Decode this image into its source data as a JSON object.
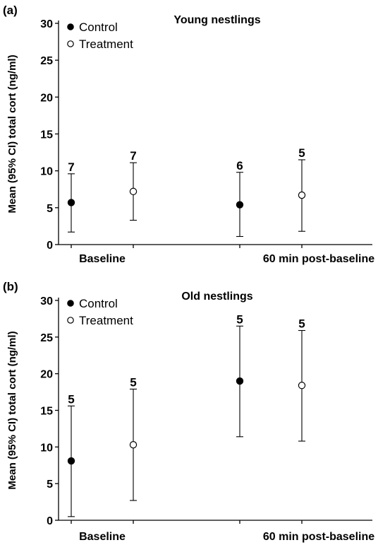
{
  "chart_data": [
    {
      "type": "scatter",
      "panel_label": "(a)",
      "title": "Young nestlings",
      "ylabel": "Mean (95% CI) total cort (ng/ml)",
      "xlabel": "",
      "ylim": [
        0,
        30
      ],
      "yticks": [
        0,
        5,
        10,
        15,
        20,
        25,
        30
      ],
      "groups": [
        "Baseline",
        "60 min post-baseline"
      ],
      "legend": {
        "position": "top-left",
        "entries": [
          "Control",
          "Treatment"
        ]
      },
      "grid": false,
      "series": [
        {
          "name": "Control",
          "marker": "filled-circle",
          "points": [
            {
              "group": "Baseline",
              "mean": 5.7,
              "ci_low": 1.7,
              "ci_high": 9.6,
              "n": "7"
            },
            {
              "group": "60 min post-baseline",
              "mean": 5.4,
              "ci_low": 1.1,
              "ci_high": 9.8,
              "n": "6"
            }
          ]
        },
        {
          "name": "Treatment",
          "marker": "open-circle",
          "points": [
            {
              "group": "Baseline",
              "mean": 7.2,
              "ci_low": 3.3,
              "ci_high": 11.1,
              "n": "7"
            },
            {
              "group": "60 min post-baseline",
              "mean": 6.7,
              "ci_low": 1.8,
              "ci_high": 11.5,
              "n": "5"
            }
          ]
        }
      ]
    },
    {
      "type": "scatter",
      "panel_label": "(b)",
      "title": "Old nestlings",
      "ylabel": "Mean (95% CI) total cort (ng/ml)",
      "xlabel": "",
      "ylim": [
        0,
        30
      ],
      "yticks": [
        0,
        5,
        10,
        15,
        20,
        25,
        30
      ],
      "groups": [
        "Baseline",
        "60 min post-baseline"
      ],
      "legend": {
        "position": "top-left",
        "entries": [
          "Control",
          "Treatment"
        ]
      },
      "grid": false,
      "series": [
        {
          "name": "Control",
          "marker": "filled-circle",
          "points": [
            {
              "group": "Baseline",
              "mean": 8.1,
              "ci_low": 0.5,
              "ci_high": 15.6,
              "n": "5"
            },
            {
              "group": "60 min post-baseline",
              "mean": 19.0,
              "ci_low": 11.4,
              "ci_high": 26.5,
              "n": "5"
            }
          ]
        },
        {
          "name": "Treatment",
          "marker": "open-circle",
          "points": [
            {
              "group": "Baseline",
              "mean": 10.3,
              "ci_low": 2.7,
              "ci_high": 17.9,
              "n": "5"
            },
            {
              "group": "60 min post-baseline",
              "mean": 18.4,
              "ci_low": 10.8,
              "ci_high": 25.9,
              "n": "5"
            }
          ]
        }
      ]
    }
  ]
}
